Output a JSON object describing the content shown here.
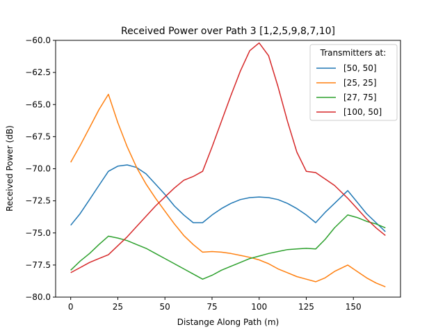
{
  "chart_data": {
    "type": "line",
    "title": "Received Power over Path 3 [1,2,5,9,8,7,10]",
    "xlabel": "Distange Along Path (m)",
    "ylabel": "Received Power (dB)",
    "xlim": [
      -8,
      175
    ],
    "ylim": [
      -80,
      -60
    ],
    "xticks": [
      0,
      25,
      50,
      75,
      100,
      125,
      150
    ],
    "xtick_labels": [
      "0",
      "25",
      "50",
      "75",
      "100",
      "125",
      "150"
    ],
    "yticks": [
      -80,
      -77.5,
      -75,
      -72.5,
      -70,
      -67.5,
      -65,
      -62.5,
      -60
    ],
    "ytick_labels": [
      "−80.0",
      "−77.5",
      "−75.0",
      "−72.5",
      "−70.0",
      "−67.5",
      "−65.0",
      "−62.5",
      "−60.0"
    ],
    "grid": false,
    "legend": {
      "title": "Transmitters at:",
      "position": "top-right"
    },
    "series": [
      {
        "name": "[50, 50]",
        "color": "#1f77b4",
        "x": [
          0,
          5,
          10,
          15,
          20,
          25,
          30,
          35,
          40,
          45,
          50,
          55,
          60,
          65,
          70,
          75,
          80,
          85,
          90,
          95,
          100,
          105,
          110,
          115,
          120,
          125,
          130,
          135,
          140,
          147,
          152,
          157,
          162,
          167
        ],
        "y": [
          -74.4,
          -73.5,
          -72.4,
          -71.3,
          -70.2,
          -69.8,
          -69.7,
          -69.9,
          -70.4,
          -71.2,
          -72.0,
          -72.9,
          -73.6,
          -74.2,
          -74.2,
          -73.6,
          -73.1,
          -72.7,
          -72.4,
          -72.25,
          -72.2,
          -72.25,
          -72.4,
          -72.7,
          -73.1,
          -73.6,
          -74.2,
          -73.4,
          -72.7,
          -71.7,
          -72.6,
          -73.5,
          -74.2,
          -74.9
        ]
      },
      {
        "name": "[25, 25]",
        "color": "#ff7f0e",
        "x": [
          0,
          5,
          10,
          15,
          20,
          25,
          30,
          35,
          40,
          45,
          50,
          55,
          60,
          65,
          70,
          75,
          80,
          85,
          90,
          95,
          100,
          105,
          110,
          115,
          120,
          125,
          130,
          135,
          140,
          147,
          152,
          157,
          162,
          167
        ],
        "y": [
          -69.5,
          -68.2,
          -66.8,
          -65.4,
          -64.2,
          -66.4,
          -68.3,
          -69.9,
          -71.2,
          -72.3,
          -73.3,
          -74.3,
          -75.2,
          -75.9,
          -76.5,
          -76.45,
          -76.5,
          -76.6,
          -76.75,
          -76.9,
          -77.1,
          -77.4,
          -77.8,
          -78.1,
          -78.4,
          -78.6,
          -78.8,
          -78.5,
          -78.0,
          -77.5,
          -78.0,
          -78.5,
          -78.9,
          -79.2
        ]
      },
      {
        "name": "[27, 75]",
        "color": "#2ca02c",
        "x": [
          0,
          5,
          10,
          15,
          20,
          25,
          30,
          35,
          40,
          45,
          50,
          55,
          60,
          65,
          70,
          75,
          80,
          85,
          90,
          95,
          100,
          105,
          110,
          115,
          120,
          125,
          130,
          135,
          140,
          147,
          152,
          157,
          162,
          167
        ],
        "y": [
          -77.9,
          -77.2,
          -76.6,
          -75.9,
          -75.25,
          -75.4,
          -75.6,
          -75.9,
          -76.2,
          -76.6,
          -77.0,
          -77.4,
          -77.8,
          -78.2,
          -78.6,
          -78.3,
          -77.9,
          -77.6,
          -77.3,
          -77.0,
          -76.8,
          -76.6,
          -76.45,
          -76.3,
          -76.25,
          -76.2,
          -76.25,
          -75.5,
          -74.6,
          -73.6,
          -73.8,
          -74.1,
          -74.3,
          -74.6
        ]
      },
      {
        "name": "[100, 50]",
        "color": "#d62728",
        "x": [
          0,
          5,
          10,
          15,
          20,
          25,
          30,
          35,
          40,
          45,
          50,
          55,
          60,
          65,
          70,
          75,
          80,
          85,
          90,
          95,
          100,
          105,
          110,
          115,
          120,
          125,
          130,
          135,
          140,
          147,
          152,
          157,
          162,
          167
        ],
        "y": [
          -78.1,
          -77.7,
          -77.3,
          -77.0,
          -76.7,
          -76.0,
          -75.3,
          -74.5,
          -73.7,
          -72.9,
          -72.2,
          -71.5,
          -70.9,
          -70.6,
          -70.2,
          -68.3,
          -66.3,
          -64.3,
          -62.4,
          -60.8,
          -60.2,
          -61.2,
          -63.6,
          -66.3,
          -68.7,
          -70.2,
          -70.3,
          -70.8,
          -71.3,
          -72.3,
          -73.1,
          -73.9,
          -74.6,
          -75.2
        ]
      }
    ]
  }
}
